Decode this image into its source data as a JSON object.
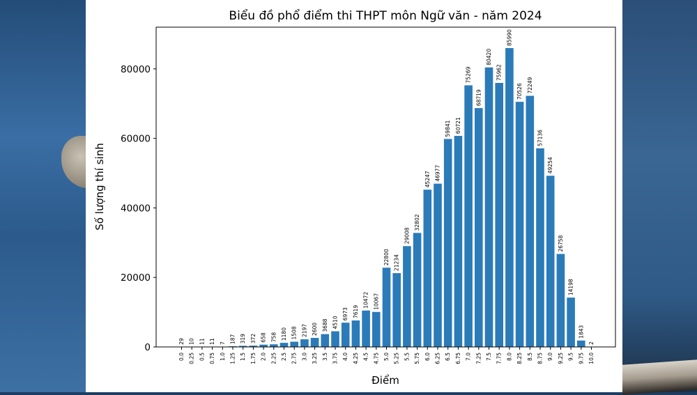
{
  "colors": {
    "bar": "#2b7bb9",
    "frame": "#000000",
    "panel": "#ffffff"
  },
  "chart_data": {
    "type": "bar",
    "title": "Biểu đồ phổ điểm thi THPT môn Ngữ văn - năm 2024",
    "xlabel": "Điểm",
    "ylabel": "Số lượng thí sinh",
    "ylim": [
      0,
      92000
    ],
    "yticks": [
      0,
      20000,
      40000,
      60000,
      80000
    ],
    "grid": false,
    "categories": [
      "0.0",
      "0.25",
      "0.5",
      "0.75",
      "1.0",
      "1.25",
      "1.5",
      "1.75",
      "2.0",
      "2.25",
      "2.5",
      "2.75",
      "3.0",
      "3.25",
      "3.5",
      "3.75",
      "4.0",
      "4.25",
      "4.5",
      "4.75",
      "5.0",
      "5.25",
      "5.5",
      "5.75",
      "6.0",
      "6.25",
      "6.5",
      "6.75",
      "7.0",
      "7.25",
      "7.5",
      "7.75",
      "8.0",
      "8.25",
      "8.5",
      "8.75",
      "9.0",
      "9.25",
      "9.5",
      "9.75",
      "10.0"
    ],
    "values": [
      29,
      10,
      11,
      11,
      7,
      187,
      319,
      372,
      658,
      758,
      1180,
      1508,
      2197,
      2600,
      3688,
      4510,
      6973,
      7619,
      10472,
      10067,
      22800,
      21234,
      29008,
      32802,
      45247,
      46977,
      59841,
      60721,
      75269,
      68719,
      80420,
      75962,
      85990,
      70526,
      72249,
      57136,
      49254,
      26758,
      14198,
      1843,
      2
    ]
  }
}
